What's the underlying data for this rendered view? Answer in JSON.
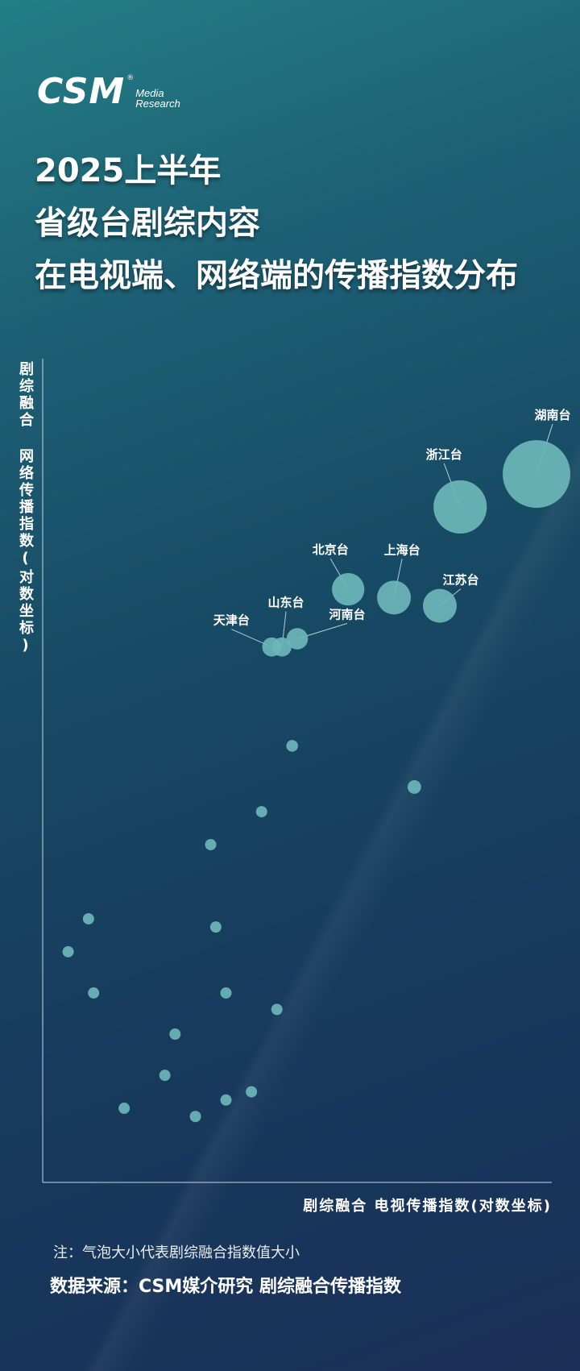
{
  "logo": {
    "mark": "CSM",
    "reg": "®",
    "line1": "Media",
    "line2": "Research"
  },
  "title": {
    "line1": "2025上半年",
    "line2": "省级台剧综内容",
    "line3": "在电视端、网络端的传播指数分布"
  },
  "colors": {
    "bubble": "#6cb6b8",
    "axis": "#c9d6de",
    "leader": "#cfe3e4"
  },
  "chart_data": {
    "type": "scatter",
    "xlabel": "剧综融合 电视传播指数(对数坐标)",
    "ylabel": "剧综融合 网络传播指数(对数坐标)",
    "scale": "log",
    "grid": false,
    "legend": "none",
    "axis_ticks": "none",
    "size_encoding": "剧综融合指数值大小",
    "points": [
      {
        "label": "湖南台",
        "x": 0.97,
        "y": 0.86,
        "size": 1.0
      },
      {
        "label": "浙江台",
        "x": 0.82,
        "y": 0.82,
        "size": 0.62
      },
      {
        "label": "江苏台",
        "x": 0.78,
        "y": 0.7,
        "size": 0.25
      },
      {
        "label": "上海台",
        "x": 0.69,
        "y": 0.71,
        "size": 0.25
      },
      {
        "label": "北京台",
        "x": 0.6,
        "y": 0.72,
        "size": 0.23
      },
      {
        "label": "河南台",
        "x": 0.5,
        "y": 0.66,
        "size": 0.1
      },
      {
        "label": "山东台",
        "x": 0.47,
        "y": 0.65,
        "size": 0.08
      },
      {
        "label": "天津台",
        "x": 0.45,
        "y": 0.65,
        "size": 0.08
      },
      {
        "label": "",
        "x": 0.49,
        "y": 0.53,
        "size": 0.03
      },
      {
        "label": "",
        "x": 0.73,
        "y": 0.48,
        "size": 0.04
      },
      {
        "label": "",
        "x": 0.43,
        "y": 0.45,
        "size": 0.02
      },
      {
        "label": "",
        "x": 0.33,
        "y": 0.41,
        "size": 0.02
      },
      {
        "label": "",
        "x": 0.09,
        "y": 0.32,
        "size": 0.02
      },
      {
        "label": "",
        "x": 0.34,
        "y": 0.31,
        "size": 0.02
      },
      {
        "label": "",
        "x": 0.05,
        "y": 0.28,
        "size": 0.02
      },
      {
        "label": "",
        "x": 0.1,
        "y": 0.23,
        "size": 0.02
      },
      {
        "label": "",
        "x": 0.36,
        "y": 0.23,
        "size": 0.02
      },
      {
        "label": "",
        "x": 0.46,
        "y": 0.21,
        "size": 0.02
      },
      {
        "label": "",
        "x": 0.26,
        "y": 0.18,
        "size": 0.02
      },
      {
        "label": "",
        "x": 0.24,
        "y": 0.13,
        "size": 0.02
      },
      {
        "label": "",
        "x": 0.41,
        "y": 0.11,
        "size": 0.02
      },
      {
        "label": "",
        "x": 0.36,
        "y": 0.1,
        "size": 0.02
      },
      {
        "label": "",
        "x": 0.16,
        "y": 0.09,
        "size": 0.02
      },
      {
        "label": "",
        "x": 0.3,
        "y": 0.08,
        "size": 0.02
      }
    ]
  },
  "note": "注：气泡大小代表剧综融合指数值大小",
  "source": "数据来源：CSM媒介研究 剧综融合传播指数"
}
